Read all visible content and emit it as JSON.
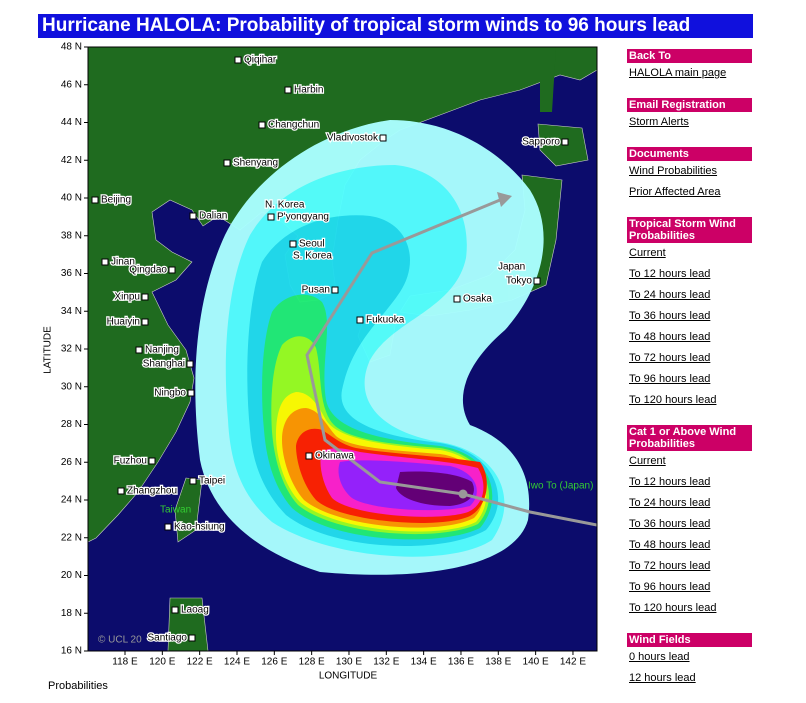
{
  "header": {
    "title": "Hurricane HALOLA: Probability of tropical storm winds to 96 hours lead"
  },
  "map": {
    "y_axis_label": "LATITUDE",
    "x_axis_label": "LONGITUDE",
    "latitudes": [
      "48 N",
      "46 N",
      "44 N",
      "42 N",
      "40 N",
      "38 N",
      "36 N",
      "34 N",
      "32 N",
      "30 N",
      "28 N",
      "26 N",
      "24 N",
      "22 N",
      "20 N",
      "18 N",
      "16 N"
    ],
    "longitudes": [
      "118 E",
      "120 E",
      "122 E",
      "124 E",
      "126 E",
      "128 E",
      "130 E",
      "132 E",
      "134 E",
      "136 E",
      "138 E",
      "140 E",
      "142 E"
    ],
    "places": [
      "Qiqihar",
      "Harbin",
      "Changchun",
      "Vladivostok",
      "Sapporo",
      "Shenyang",
      "Beijing",
      "Dalian",
      "P'yongyang",
      "Seoul",
      "Jinan",
      "Qingdao",
      "Tokyo",
      "Xinpu",
      "Pusan",
      "Osaka",
      "Huaiyin",
      "Fukuoka",
      "Nanjing",
      "Shanghai",
      "Ningbo",
      "Okinawa",
      "Fuzhou",
      "Taipei",
      "Zhangzhou",
      "Kao-hsiung",
      "Laoag",
      "Santiago"
    ],
    "regions": [
      "N. Korea",
      "S. Korea",
      "Japan",
      "Taiwan",
      "Iwo To (Japan)"
    ],
    "copyright": "© UCL 20"
  },
  "sidebar": {
    "sections": [
      {
        "heading": "Back To",
        "links": [
          "HALOLA main page"
        ]
      },
      {
        "heading": "Email Registration",
        "links": [
          "Storm Alerts"
        ]
      },
      {
        "heading": "Documents",
        "links": [
          "Wind Probabilities",
          "Prior Affected Area"
        ]
      },
      {
        "heading": "Tropical Storm Wind Probabilities",
        "links": [
          "Current",
          "To 12 hours lead",
          "To 24 hours lead",
          "To 36 hours lead",
          "To 48 hours lead",
          "To 72 hours lead",
          "To 96 hours lead",
          "To 120 hours lead"
        ]
      },
      {
        "heading": "Cat 1 or Above Wind Probabilities",
        "links": [
          "Current",
          "To 12 hours lead",
          "To 24 hours lead",
          "To 36 hours lead",
          "To 48 hours lead",
          "To 72 hours lead",
          "To 96 hours lead",
          "To 120 hours lead"
        ]
      },
      {
        "heading": "Wind Fields",
        "links": [
          "0 hours lead",
          "12 hours lead"
        ]
      }
    ]
  },
  "footer": "Probabilities"
}
